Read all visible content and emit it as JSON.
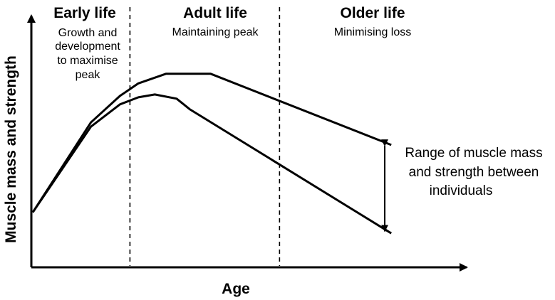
{
  "chart_data": {
    "type": "line",
    "xlabel": "Age",
    "ylabel": "Muscle mass and strength",
    "grid": false,
    "legend": "none",
    "stages": [
      {
        "title": "Early life",
        "description": [
          "Growth and",
          "development",
          "to maximise",
          "peak"
        ]
      },
      {
        "title": "Adult life",
        "description": [
          "Maintaining peak"
        ]
      },
      {
        "title": "Older life",
        "description": [
          "Minimising loss"
        ]
      }
    ],
    "stage_boundaries": [
      0.254,
      0.645
    ],
    "series": [
      {
        "x": [
          0,
          0.152,
          0.228,
          0.276,
          0.348,
          0.465,
          0.937
        ],
        "y": [
          0.273,
          0.72,
          0.852,
          0.914,
          0.962,
          0.962,
          0.608
        ]
      },
      {
        "x": [
          0,
          0.152,
          0.228,
          0.276,
          0.319,
          0.376,
          0.41,
          0.937
        ],
        "y": [
          0.273,
          0.699,
          0.81,
          0.845,
          0.859,
          0.838,
          0.786,
          0.169
        ]
      }
    ],
    "annotation": {
      "lines": [
        "Range of muscle mass",
        "and strength between",
        "individuals"
      ],
      "arrow_x": 0.92,
      "arrow_y": [
        0.604,
        0.179
      ]
    },
    "colors": {
      "line": "#000000",
      "background": "#ffffff"
    }
  }
}
